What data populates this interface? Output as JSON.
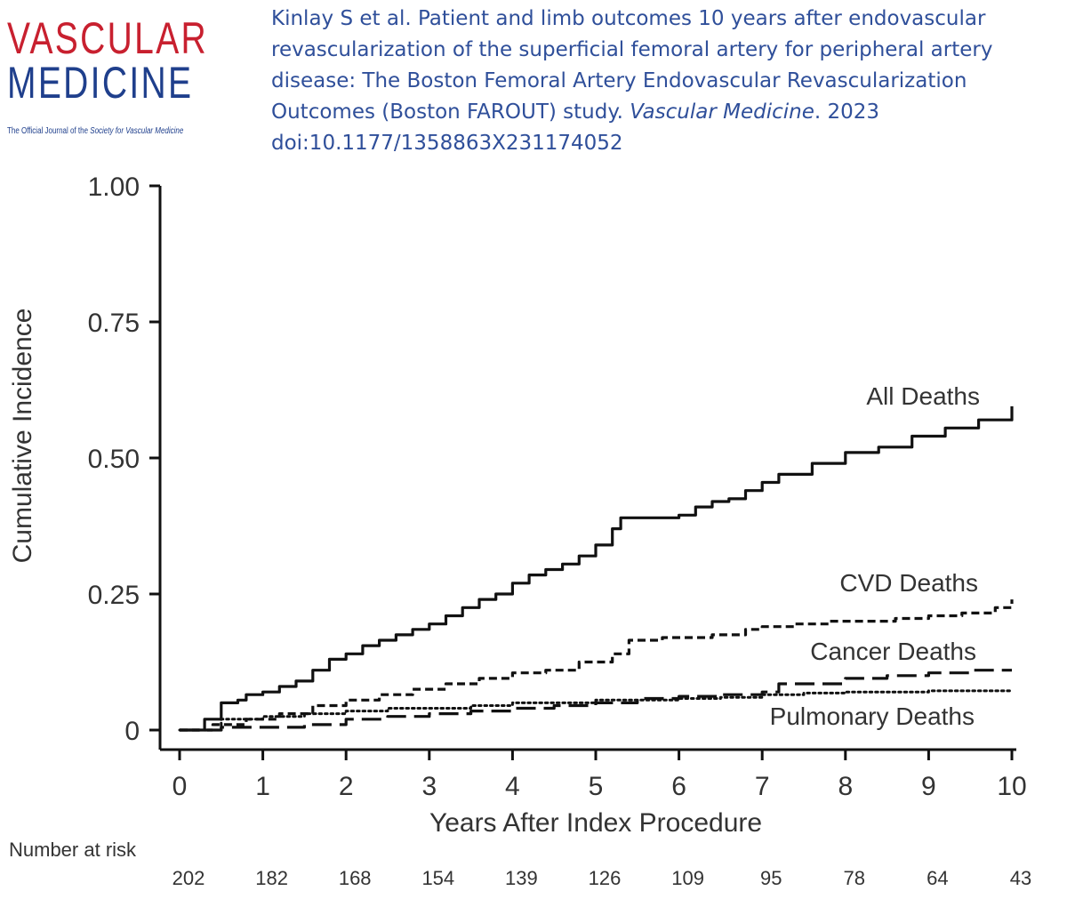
{
  "logo": {
    "line1": "VASCULAR",
    "line2": "MEDICINE",
    "tagline_prefix": "The Official Journal of the ",
    "tagline_society": "Society for Vascular Medicine"
  },
  "citation": {
    "text": "Kinlay S et al. Patient and limb outcomes 10 years after endovascular revascularization of the superficial femoral artery for peripheral artery disease: The Boston Femoral Artery Endovascular Revascularization Outcomes (Boston FAROUT) study. ",
    "journal": "Vascular Medicine",
    "year_doi": ". 2023 doi:10.1177/1358863X231174052"
  },
  "colors": {
    "logo_red": "#c8202f",
    "logo_blue": "#1f3f8c",
    "citation_blue": "#2f4f9a",
    "ink": "#111111"
  },
  "chart_data": {
    "type": "line",
    "title": "",
    "xlabel": "Years After Index Procedure",
    "ylabel": "Cumulative Incidence",
    "xlim": [
      0,
      10
    ],
    "ylim": [
      0,
      1
    ],
    "x_ticks": [
      "0",
      "1",
      "2",
      "3",
      "4",
      "5",
      "6",
      "7",
      "8",
      "9",
      "10"
    ],
    "y_ticks": [
      "0",
      "0.25",
      "0.50",
      "0.75",
      "1.00"
    ],
    "y_tick_values": [
      0,
      0.25,
      0.5,
      0.75,
      1.0
    ],
    "series": [
      {
        "name": "All Deaths",
        "style": "solid",
        "x": [
          0,
          0.3,
          0.5,
          0.7,
          0.8,
          1.0,
          1.2,
          1.4,
          1.6,
          1.8,
          2.0,
          2.2,
          2.4,
          2.6,
          2.8,
          3.0,
          3.2,
          3.4,
          3.6,
          3.8,
          4.0,
          4.2,
          4.4,
          4.6,
          4.8,
          5.0,
          5.2,
          5.3,
          5.6,
          6.0,
          6.2,
          6.4,
          6.6,
          6.8,
          7.0,
          7.2,
          7.6,
          8.0,
          8.4,
          8.8,
          9.2,
          9.6,
          10.0
        ],
        "y": [
          0,
          0.02,
          0.05,
          0.055,
          0.065,
          0.07,
          0.08,
          0.09,
          0.11,
          0.13,
          0.14,
          0.155,
          0.165,
          0.175,
          0.185,
          0.195,
          0.21,
          0.225,
          0.24,
          0.25,
          0.27,
          0.285,
          0.295,
          0.305,
          0.32,
          0.34,
          0.37,
          0.39,
          0.39,
          0.395,
          0.41,
          0.42,
          0.425,
          0.44,
          0.455,
          0.47,
          0.49,
          0.51,
          0.52,
          0.54,
          0.555,
          0.57,
          0.595
        ]
      },
      {
        "name": "CVD Deaths",
        "style": "dash",
        "x": [
          0,
          0.4,
          0.8,
          1.2,
          1.6,
          2.0,
          2.4,
          2.8,
          3.2,
          3.6,
          4.0,
          4.4,
          4.8,
          5.2,
          5.4,
          5.8,
          6.0,
          6.4,
          6.8,
          7.0,
          7.4,
          7.8,
          8.2,
          8.6,
          9.0,
          9.4,
          9.8,
          10.0
        ],
        "y": [
          0,
          0.01,
          0.02,
          0.03,
          0.045,
          0.055,
          0.065,
          0.075,
          0.085,
          0.095,
          0.105,
          0.11,
          0.125,
          0.14,
          0.165,
          0.17,
          0.17,
          0.175,
          0.185,
          0.19,
          0.195,
          0.2,
          0.2,
          0.205,
          0.21,
          0.215,
          0.225,
          0.24
        ]
      },
      {
        "name": "Cancer Deaths",
        "style": "longdash",
        "x": [
          0,
          0.5,
          1.0,
          1.5,
          2.0,
          2.5,
          3.0,
          3.5,
          4.0,
          4.5,
          5.0,
          5.5,
          6.0,
          6.5,
          7.0,
          7.2,
          8.0,
          8.5,
          9.0,
          9.5,
          10.0
        ],
        "y": [
          0,
          0.005,
          0.005,
          0.01,
          0.02,
          0.025,
          0.03,
          0.035,
          0.04,
          0.045,
          0.05,
          0.058,
          0.062,
          0.065,
          0.07,
          0.085,
          0.095,
          0.1,
          0.105,
          0.11,
          0.11
        ]
      },
      {
        "name": "Pulmonary Deaths",
        "style": "dotted",
        "x": [
          0,
          0.5,
          1.0,
          1.5,
          2.0,
          2.5,
          3.0,
          3.5,
          4.0,
          4.5,
          5.0,
          5.5,
          6.0,
          6.5,
          7.0,
          7.5,
          8.0,
          8.5,
          9.0,
          9.5,
          10.0
        ],
        "y": [
          0,
          0.02,
          0.025,
          0.03,
          0.035,
          0.04,
          0.04,
          0.045,
          0.05,
          0.05,
          0.055,
          0.055,
          0.058,
          0.06,
          0.065,
          0.068,
          0.07,
          0.07,
          0.072,
          0.072,
          0.072
        ]
      }
    ],
    "number_at_risk": {
      "label": "Number at risk",
      "values": [
        "202",
        "182",
        "168",
        "154",
        "139",
        "126",
        "109",
        "95",
        "78",
        "64",
        "43"
      ]
    }
  }
}
